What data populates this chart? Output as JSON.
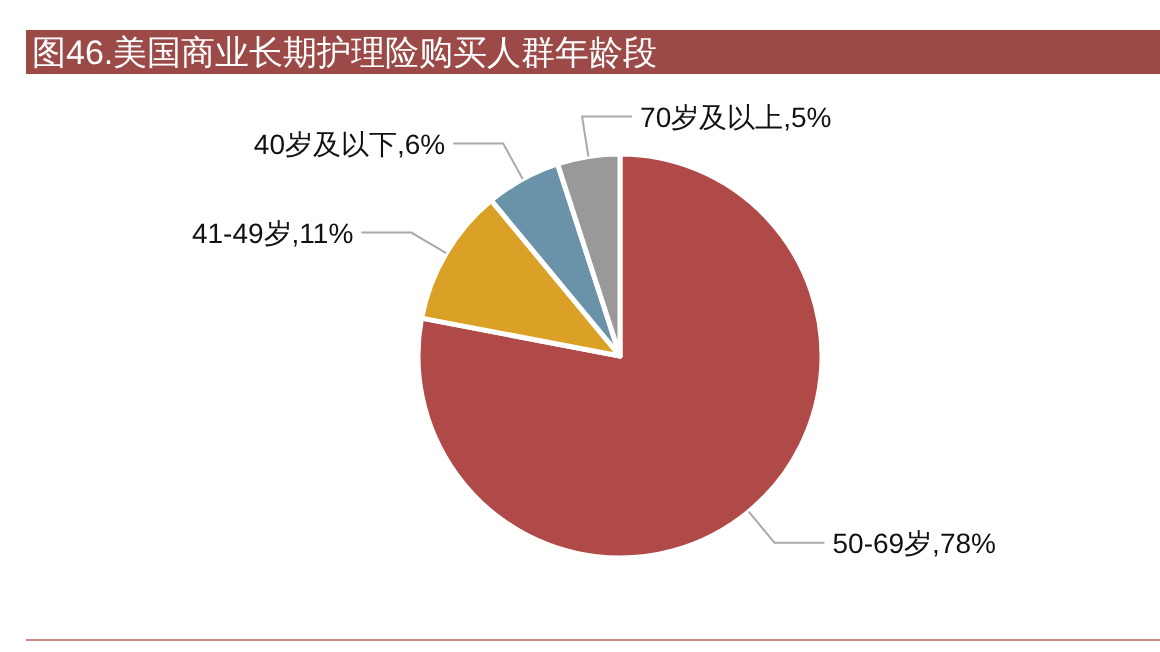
{
  "chart_data": {
    "type": "pie",
    "title": "图46.美国商业长期护理险购买人群年龄段",
    "categories": [
      "50-69岁",
      "41-49岁",
      "40岁及以下",
      "70岁及以上"
    ],
    "values": [
      78,
      11,
      6,
      5
    ],
    "value_labels": [
      "78%",
      "11%",
      "6%",
      "5%"
    ],
    "colors": [
      "#b04a48",
      "#dba026",
      "#6a93aa",
      "#999999"
    ]
  }
}
